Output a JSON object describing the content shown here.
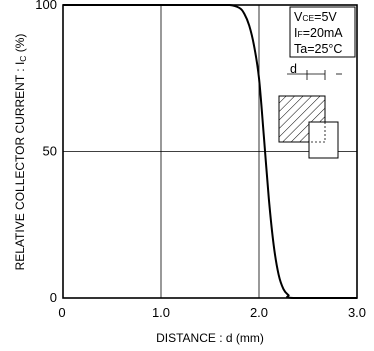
{
  "chart_data": {
    "type": "line",
    "xlabel": "DISTANCE : d (mm)",
    "ylabel_main": "RELATIVE COLLECTOR CURRENT : I",
    "ylabel_sub": "C",
    "ylabel_unit": " (%)",
    "xlim": [
      0,
      3.0
    ],
    "ylim": [
      0,
      100
    ],
    "x_ticks": [
      {
        "value": 0,
        "label": "0"
      },
      {
        "value": 1.0,
        "label": "1.0"
      },
      {
        "value": 2.0,
        "label": "2.0"
      },
      {
        "value": 3.0,
        "label": "3.0"
      }
    ],
    "y_ticks": [
      {
        "value": 0,
        "label": "0"
      },
      {
        "value": 50,
        "label": "50"
      },
      {
        "value": 100,
        "label": "100"
      }
    ],
    "grid": true,
    "series": [
      {
        "x": [
          0,
          0.5,
          1.0,
          1.5,
          1.7,
          1.8,
          1.85,
          1.9,
          1.95,
          2.0,
          2.05,
          2.1,
          2.15,
          2.2,
          2.25,
          2.3,
          2.35,
          3.0
        ],
        "y": [
          100,
          100,
          100,
          100,
          100,
          99,
          97,
          93,
          86,
          75,
          55,
          34,
          18,
          8,
          3,
          1,
          0,
          0
        ]
      }
    ],
    "conditions": [
      {
        "main": "V",
        "sub": "CE",
        "rest": "=5V"
      },
      {
        "main": "I",
        "sub": "F",
        "rest": "=20mA"
      },
      {
        "main": "Ta=25°C",
        "sub": "",
        "rest": ""
      }
    ],
    "inset_label": "d",
    "line_color": "#000000"
  }
}
